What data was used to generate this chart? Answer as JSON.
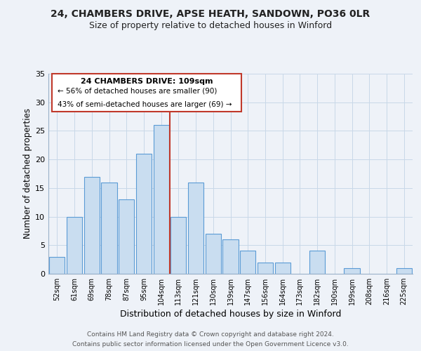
{
  "title": "24, CHAMBERS DRIVE, APSE HEATH, SANDOWN, PO36 0LR",
  "subtitle": "Size of property relative to detached houses in Winford",
  "xlabel": "Distribution of detached houses by size in Winford",
  "ylabel": "Number of detached properties",
  "bar_labels": [
    "52sqm",
    "61sqm",
    "69sqm",
    "78sqm",
    "87sqm",
    "95sqm",
    "104sqm",
    "113sqm",
    "121sqm",
    "130sqm",
    "139sqm",
    "147sqm",
    "156sqm",
    "164sqm",
    "173sqm",
    "182sqm",
    "190sqm",
    "199sqm",
    "208sqm",
    "216sqm",
    "225sqm"
  ],
  "bar_values": [
    3,
    10,
    17,
    16,
    13,
    21,
    26,
    10,
    16,
    7,
    6,
    4,
    2,
    2,
    0,
    4,
    0,
    1,
    0,
    0,
    1
  ],
  "bar_color": "#c9ddf0",
  "bar_edge_color": "#5b9bd5",
  "vline_x_index": 6,
  "vline_color": "#c0392b",
  "ylim": [
    0,
    35
  ],
  "yticks": [
    0,
    5,
    10,
    15,
    20,
    25,
    30,
    35
  ],
  "annotation_title": "24 CHAMBERS DRIVE: 109sqm",
  "annotation_line1": "← 56% of detached houses are smaller (90)",
  "annotation_line2": "43% of semi-detached houses are larger (69) →",
  "annotation_box_edge": "#c0392b",
  "footer1": "Contains HM Land Registry data © Crown copyright and database right 2024.",
  "footer2": "Contains public sector information licensed under the Open Government Licence v3.0.",
  "background_color": "#eef2f8",
  "plot_bg_color": "#eef2f8",
  "title_fontsize": 10,
  "subtitle_fontsize": 9,
  "xlabel_fontsize": 9,
  "ylabel_fontsize": 8.5,
  "footer_fontsize": 6.5
}
